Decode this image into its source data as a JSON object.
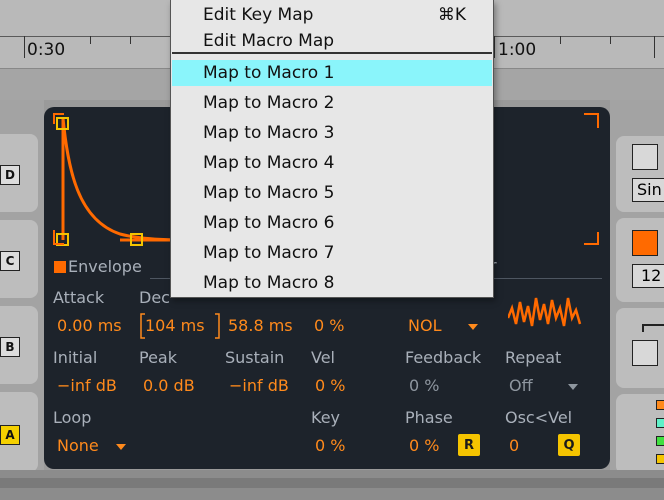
{
  "timeline": {
    "labels": [
      "0:30",
      "1:00"
    ]
  },
  "chain": {
    "keys": [
      "D",
      "C",
      "B",
      "A"
    ],
    "active_key": "A"
  },
  "menu": {
    "items": [
      {
        "label": "Edit Key Map",
        "shortcut": "⌘K"
      },
      {
        "label": "Edit Macro Map",
        "shortcut": ""
      }
    ],
    "macro_items": [
      {
        "label": "Map to Macro 1",
        "highlighted": true
      },
      {
        "label": "Map to Macro 2"
      },
      {
        "label": "Map to Macro 3"
      },
      {
        "label": "Map to Macro 4"
      },
      {
        "label": "Map to Macro 5"
      },
      {
        "label": "Map to Macro 6"
      },
      {
        "label": "Map to Macro 7"
      },
      {
        "label": "Map to Macro 8"
      }
    ]
  },
  "envelope": {
    "title": "Envelope",
    "attack": {
      "label": "Attack",
      "value": "0.00 ms"
    },
    "decay": {
      "label": "Dec",
      "value": "104 ms"
    },
    "release_partial": "58.8 ms",
    "env_pct_partial": "0 %",
    "initial": {
      "label": "Initial",
      "value": "−inf dB"
    },
    "peak": {
      "label": "Peak",
      "value": "0.0 dB"
    },
    "sustain": {
      "label": "Sustain",
      "value": "−inf dB"
    },
    "vel": {
      "label": "Vel",
      "value": "0 %"
    },
    "loop": {
      "label": "Loop",
      "value": "None"
    },
    "key": {
      "label": "Key",
      "value": "0 %"
    }
  },
  "oscillator": {
    "title_partial": "r",
    "wave_partial": "NOL",
    "feedback": {
      "label": "Feedback",
      "value": "0 %"
    },
    "repeat": {
      "label": "Repeat",
      "value": "Off"
    },
    "phase": {
      "label": "Phase",
      "value": "0 %",
      "button": "R"
    },
    "osc_vel": {
      "label": "Osc<Vel",
      "value": "0",
      "button": "Q"
    }
  },
  "right_panel": {
    "wave_label": "Sin",
    "number": "12"
  },
  "colors": {
    "accent": "#ff6a00",
    "value_orange": "#ff8a1c",
    "menu_highlight": "#8af5fb",
    "device_bg": "#1d232b",
    "key_yellow": "#f5d000"
  }
}
